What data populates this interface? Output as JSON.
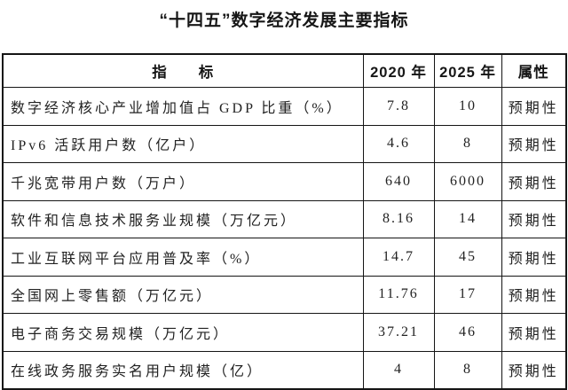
{
  "title": "“十四五”数字经济发展主要指标",
  "table": {
    "headers": {
      "indicator": "指　　标",
      "y2020": "2020 年",
      "y2025": "2025 年",
      "attr": "属性"
    },
    "rows": [
      {
        "indicator": "数字经济核心产业增加值占 GDP 比重（%）",
        "y2020": "7.8",
        "y2025": "10",
        "attr": "预期性"
      },
      {
        "indicator": "IPv6 活跃用户数（亿户）",
        "y2020": "4.6",
        "y2025": "8",
        "attr": "预期性"
      },
      {
        "indicator": "千兆宽带用户数（万户）",
        "y2020": "640",
        "y2025": "6000",
        "attr": "预期性"
      },
      {
        "indicator": "软件和信息技术服务业规模（万亿元）",
        "y2020": "8.16",
        "y2025": "14",
        "attr": "预期性"
      },
      {
        "indicator": "工业互联网平台应用普及率（%）",
        "y2020": "14.7",
        "y2025": "45",
        "attr": "预期性"
      },
      {
        "indicator": "全国网上零售额（万亿元）",
        "y2020": "11.76",
        "y2025": "17",
        "attr": "预期性"
      },
      {
        "indicator": "电子商务交易规模（万亿元）",
        "y2020": "37.21",
        "y2025": "46",
        "attr": "预期性"
      },
      {
        "indicator": "在线政务服务实名用户规模（亿）",
        "y2020": "4",
        "y2025": "8",
        "attr": "预期性"
      }
    ]
  }
}
